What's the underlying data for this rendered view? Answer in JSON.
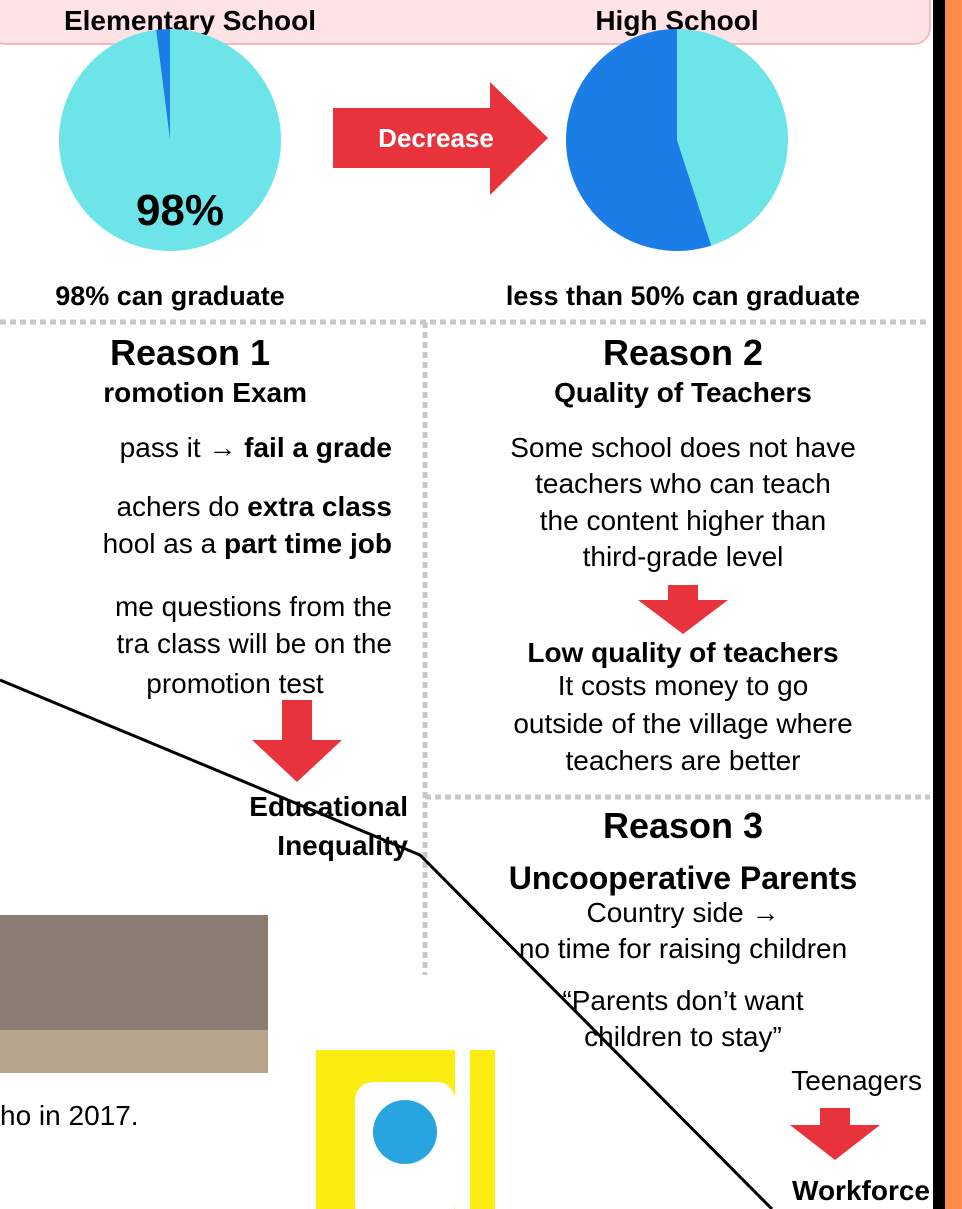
{
  "banner": {
    "left": "Elementary School",
    "right": "High School"
  },
  "charts": [
    {
      "type": "pie",
      "values": [
        98,
        2
      ],
      "value_labels": [
        "98%",
        null
      ],
      "colors": [
        "#6ce4e8",
        "#1a7ee6"
      ],
      "caption": "98% can graduate"
    },
    {
      "type": "pie",
      "values": [
        45,
        55
      ],
      "colors": [
        "#6ce4e8",
        "#1a7ee6"
      ],
      "caption": "less than 50% can graduate"
    }
  ],
  "arrow": "Decrease",
  "reason1": {
    "title": "Reason 1",
    "subtitle": "romotion Exam",
    "line1": [
      "pass it → ",
      "fail a grade"
    ],
    "line2": [
      "achers do ",
      "extra class"
    ],
    "line3": [
      "hool as a ",
      "part time job"
    ],
    "line4": "me questions from the",
    "line5": "tra class will be on the",
    "line6": "promotion test",
    "result": [
      "Educational",
      "Inequality"
    ]
  },
  "reason2": {
    "title": "Reason 2",
    "subtitle": "Quality of Teachers",
    "lines": [
      "Some school does not have",
      "teachers who can teach",
      "the content higher than",
      "third-grade level"
    ],
    "result": "Low quality of teachers",
    "lines2": [
      "It costs money to go",
      "outside of the village where",
      "teachers are better"
    ]
  },
  "reason3": {
    "title": "Reason 3",
    "subtitle": "Uncooperative Parents",
    "lines": [
      "Country side →",
      "no time for raising children",
      "“Parents don’t want",
      "children to stay”"
    ],
    "group": "Teenagers",
    "result": "Workforce"
  },
  "photo_caption": "ho in 2017."
}
